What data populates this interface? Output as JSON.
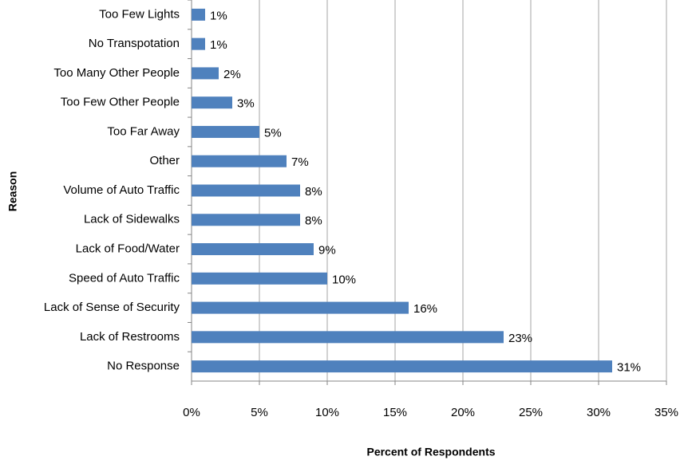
{
  "chart_data": {
    "type": "bar",
    "orientation": "horizontal",
    "xlabel": "Percent of Respondents",
    "ylabel": "Reason",
    "categories": [
      "Too Few Lights",
      "No Transpotation",
      "Too Many Other People",
      "Too Few Other People",
      "Too Far Away",
      "Other",
      "Volume of Auto Traffic",
      "Lack of Sidewalks",
      "Lack of Food/Water",
      "Speed of Auto Traffic",
      "Lack of Sense of Security",
      "Lack of Restrooms",
      "No Response"
    ],
    "values": [
      1,
      1,
      2,
      3,
      5,
      7,
      8,
      8,
      9,
      10,
      16,
      23,
      31
    ],
    "value_labels": [
      "1%",
      "1%",
      "2%",
      "3%",
      "5%",
      "7%",
      "8%",
      "8%",
      "9%",
      "10%",
      "16%",
      "23%",
      "31%"
    ],
    "color": "#4f81bd",
    "xlim": [
      0,
      35
    ],
    "xticks": [
      {
        "value": 0,
        "label": "0%"
      },
      {
        "value": 5,
        "label": "5%"
      },
      {
        "value": 10,
        "label": "10%"
      },
      {
        "value": 15,
        "label": "15%"
      },
      {
        "value": 20,
        "label": "20%"
      },
      {
        "value": 25,
        "label": "25%"
      },
      {
        "value": 30,
        "label": "30%"
      },
      {
        "value": 35,
        "label": "35%"
      }
    ],
    "grid": true
  }
}
